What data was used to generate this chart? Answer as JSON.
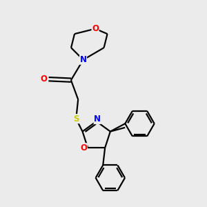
{
  "bg_color": "#ebebeb",
  "bond_color": "#000000",
  "N_color": "#0000ff",
  "O_color": "#ff0000",
  "S_color": "#cccc00",
  "line_width": 1.6,
  "figsize": [
    3.0,
    3.0
  ],
  "dpi": 100,
  "xlim": [
    0,
    10
  ],
  "ylim": [
    0,
    10
  ]
}
